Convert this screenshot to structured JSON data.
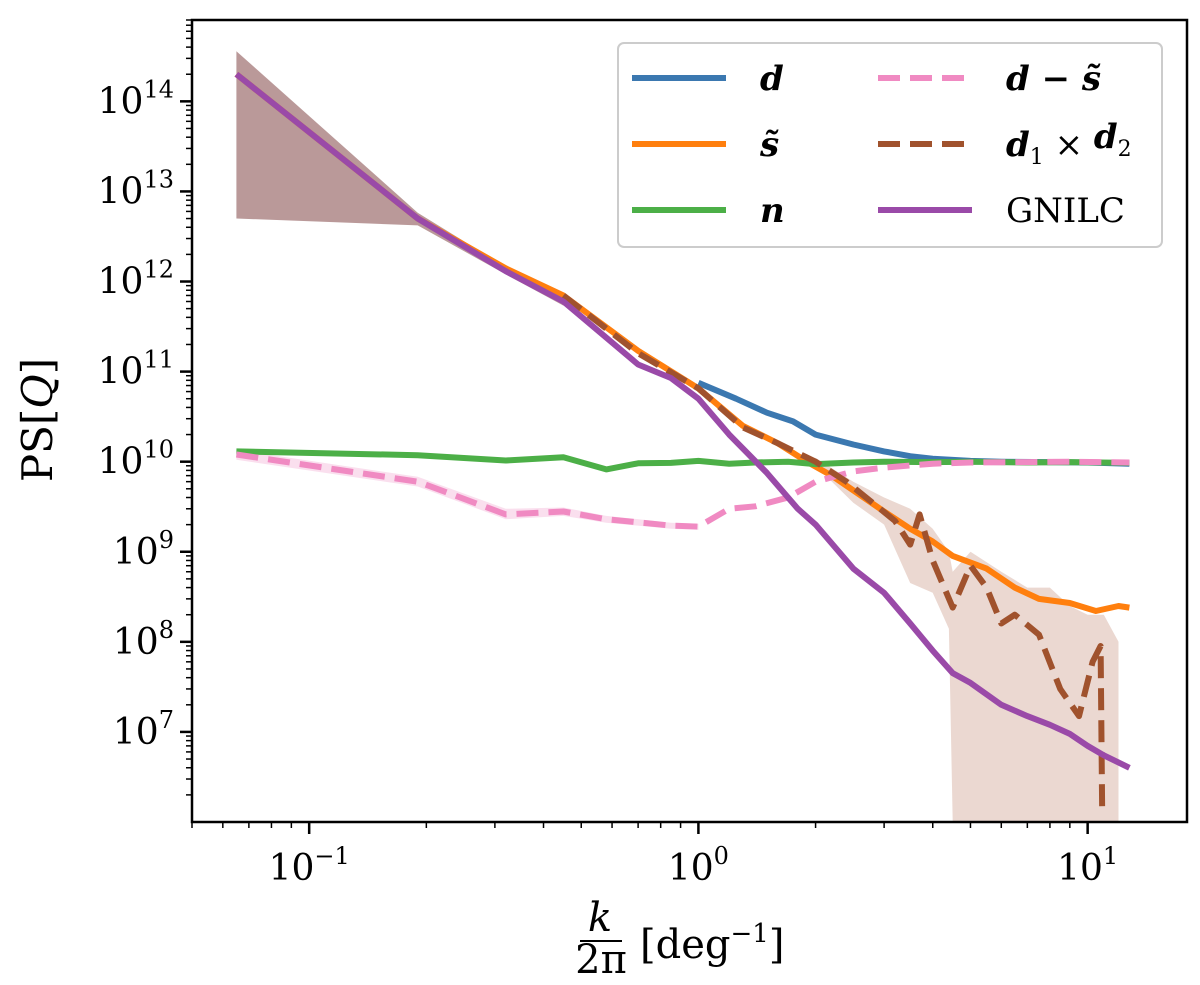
{
  "chart_data": {
    "type": "line",
    "title": "",
    "xscale": "log",
    "yscale": "log",
    "xlim": [
      0.05,
      18
    ],
    "ylim": [
      1000000.0,
      800000000000000.0
    ],
    "xlabel": {
      "frac_num": "k",
      "frac_den": "2π",
      "unit": "[deg",
      "unit_exp": "−1",
      "unit_close": "]"
    },
    "ylabel": {
      "main": "PS[",
      "var": "Q",
      "close": "]"
    },
    "x_ticks": [
      {
        "value": 0.1,
        "base": "10",
        "exp": "−1"
      },
      {
        "value": 1,
        "base": "10",
        "exp": "0"
      },
      {
        "value": 10,
        "base": "10",
        "exp": "1"
      }
    ],
    "y_ticks": [
      {
        "value": 10000000.0,
        "base": "10",
        "exp": "7"
      },
      {
        "value": 100000000.0,
        "base": "10",
        "exp": "8"
      },
      {
        "value": 1000000000.0,
        "base": "10",
        "exp": "9"
      },
      {
        "value": 10000000000.0,
        "base": "10",
        "exp": "10"
      },
      {
        "value": 100000000000.0,
        "base": "10",
        "exp": "11"
      },
      {
        "value": 1000000000000.0,
        "base": "10",
        "exp": "12"
      },
      {
        "value": 10000000000000.0,
        "base": "10",
        "exp": "13"
      },
      {
        "value": 100000000000000.0,
        "base": "10",
        "exp": "14"
      }
    ],
    "legend": {
      "placement": "top-right",
      "entries": [
        {
          "series": "d",
          "label": "d",
          "math": true
        },
        {
          "series": "s_tilde",
          "label": "s̃",
          "math": true
        },
        {
          "series": "n",
          "label": "n",
          "math": true
        },
        {
          "series": "d_minus_s",
          "label": "d − s̃",
          "math": true
        },
        {
          "series": "d1xd2",
          "label_parts": [
            "d",
            "1",
            " × ",
            "d",
            "2"
          ],
          "label": "d1 × d2",
          "math": true
        },
        {
          "series": "gnilc",
          "label": "GNILC",
          "math": false
        }
      ]
    },
    "series": [
      {
        "name": "d",
        "color": "#3b78b0",
        "dash": "solid",
        "x": [
          1.0,
          1.25,
          1.5,
          1.75,
          2.0,
          2.5,
          3.0,
          3.5,
          4.0,
          5.0,
          6.0,
          8.0,
          10.0,
          12.8
        ],
        "y": [
          75000000000.0,
          50000000000.0,
          35000000000.0,
          28000000000.0,
          20000000000.0,
          15500000000.0,
          13000000000.0,
          11500000000.0,
          10800000000.0,
          10200000000.0,
          10000000000.0,
          9900000000.0,
          9800000000.0,
          9500000000.0
        ]
      },
      {
        "name": "s_tilde",
        "color": "#ff7f0e",
        "dash": "solid",
        "x": [
          0.065,
          0.19,
          0.32,
          0.45,
          0.7,
          1.0,
          1.3,
          1.6,
          1.9,
          2.2,
          2.5,
          3.0,
          3.5,
          4.0,
          4.5,
          5.5,
          6.5,
          7.5,
          9.0,
          10.5,
          12.0,
          12.8
        ],
        "y": [
          200000000000000.0,
          5000000000000.0,
          1400000000000.0,
          700000000000.0,
          170000000000.0,
          65000000000.0,
          25000000000.0,
          16000000000.0,
          10000000000.0,
          7000000000.0,
          4800000000.0,
          2800000000.0,
          1800000000.0,
          1300000000.0,
          900000000.0,
          650000000.0,
          400000000.0,
          300000000.0,
          270000000.0,
          220000000.0,
          250000000.0,
          240000000.0
        ]
      },
      {
        "name": "n",
        "color": "#4caf47",
        "dash": "solid",
        "x": [
          0.065,
          0.19,
          0.32,
          0.45,
          0.58,
          0.7,
          0.85,
          1.0,
          1.2,
          1.4,
          1.7,
          2.0,
          2.5,
          3.0,
          4.0,
          5.0,
          7.0,
          9.0,
          12.8
        ],
        "y": [
          13000000000.0,
          11800000000.0,
          10300000000.0,
          11200000000.0,
          8200000000.0,
          9600000000.0,
          9700000000.0,
          10200000000.0,
          9500000000.0,
          9800000000.0,
          10000000000.0,
          9400000000.0,
          9800000000.0,
          10000000000.0,
          9900000000.0,
          10000000000.0,
          9800000000.0,
          9900000000.0,
          9700000000.0
        ]
      },
      {
        "name": "d_minus_s",
        "color": "#f08ac2",
        "dash": "dashed",
        "x": [
          0.065,
          0.19,
          0.32,
          0.45,
          0.58,
          0.85,
          1.0,
          1.2,
          1.4,
          1.7,
          2.0,
          2.5,
          3.0,
          4.0,
          5.0,
          7.0,
          9.0,
          12.8
        ],
        "y": [
          12000000000.0,
          6000000000.0,
          2600000000.0,
          2800000000.0,
          2300000000.0,
          1950000000.0,
          1900000000.0,
          3000000000.0,
          3200000000.0,
          4000000000.0,
          6000000000.0,
          7800000000.0,
          8600000000.0,
          9500000000.0,
          9800000000.0,
          9900000000.0,
          10000000000.0,
          9800000000.0
        ]
      },
      {
        "name": "d1xd2",
        "color": "#a0522d",
        "dash": "dashed",
        "x": [
          0.45,
          0.7,
          1.0,
          1.3,
          1.6,
          2.0,
          2.4,
          2.8,
          3.2,
          3.5,
          3.7,
          4.0,
          4.5,
          5.0,
          5.5,
          6.0,
          6.5,
          7.5,
          8.5,
          9.5,
          10.3,
          10.8,
          10.9
        ],
        "y": [
          700000000000.0,
          160000000000.0,
          65000000000.0,
          24000000000.0,
          16000000000.0,
          10000000000.0,
          6000000000.0,
          3500000000.0,
          2200000000.0,
          1200000000.0,
          2600000000.0,
          800000000.0,
          240000000.0,
          700000000.0,
          400000000.0,
          160000000.0,
          200000000.0,
          120000000.0,
          30000000.0,
          15000000.0,
          60000000.0,
          90000000.0,
          1200000.0
        ]
      },
      {
        "name": "gnilc",
        "color": "#9a4aa8",
        "dash": "solid",
        "x": [
          0.065,
          0.19,
          0.32,
          0.45,
          0.7,
          0.85,
          1.0,
          1.2,
          1.5,
          1.8,
          2.0,
          2.5,
          3.0,
          3.5,
          4.0,
          4.5,
          5.0,
          6.0,
          7.0,
          8.0,
          9.0,
          10.0,
          11.0,
          12.8
        ],
        "y": [
          200000000000000.0,
          5000000000000.0,
          1300000000000.0,
          600000000000.0,
          120000000000.0,
          85000000000.0,
          50000000000.0,
          20000000000.0,
          7500000000.0,
          3000000000.0,
          2000000000.0,
          650000000.0,
          350000000.0,
          160000000.0,
          80000000.0,
          45000000.0,
          35000000.0,
          20000000.0,
          15000000.0,
          12000000.0,
          9500000.0,
          7000000.0,
          5500000.0,
          4000000.0
        ]
      }
    ],
    "bands": [
      {
        "name": "gnilc_band_low_k",
        "color": "#a97f7f",
        "opacity": 0.8,
        "x": [
          0.065,
          0.19,
          0.32,
          0.45
        ],
        "upper": [
          360000000000000.0,
          5800000000000.0,
          1450000000000.0,
          660000000000.0
        ],
        "lower": [
          5000000000000.0,
          4200000000000.0,
          1200000000000.0,
          540000000000.0
        ]
      },
      {
        "name": "d1xd2_band_high_k",
        "color": "#e3c8bd",
        "opacity": 0.7,
        "x": [
          2.0,
          2.5,
          3.0,
          3.5,
          4.0,
          4.4,
          4.5,
          5.0,
          6.0,
          7.0,
          8.0,
          9.0,
          10.0,
          11.0,
          12.0
        ],
        "upper": [
          11000000000.0,
          6000000000.0,
          4000000000.0,
          3000000000.0,
          1800000000.0,
          1000000000.0,
          600000000.0,
          1000000000.0,
          600000000.0,
          400000000.0,
          400000000.0,
          250000000.0,
          200000000.0,
          200000000.0,
          100000000.0
        ],
        "lower": [
          9000000000.0,
          3500000000.0,
          2000000000.0,
          450000000.0,
          350000000.0,
          140000000.0,
          1000000.0,
          1000000.0,
          1000000.0,
          1000000.0,
          1000000.0,
          1000000.0,
          1000000.0,
          1000000.0,
          1000000.0
        ]
      },
      {
        "name": "d_minus_s_band",
        "color": "#f6c9e2",
        "opacity": 0.6,
        "x": [
          0.065,
          0.19,
          0.32,
          0.45,
          0.58,
          0.85,
          1.0
        ],
        "upper": [
          13500000000.0,
          6800000000.0,
          3000000000.0,
          3100000000.0,
          2500000000.0,
          2100000000.0,
          2050000000.0
        ],
        "lower": [
          10500000000.0,
          5300000000.0,
          2300000000.0,
          2500000000.0,
          2100000000.0,
          1800000000.0,
          1750000000.0
        ]
      }
    ]
  }
}
